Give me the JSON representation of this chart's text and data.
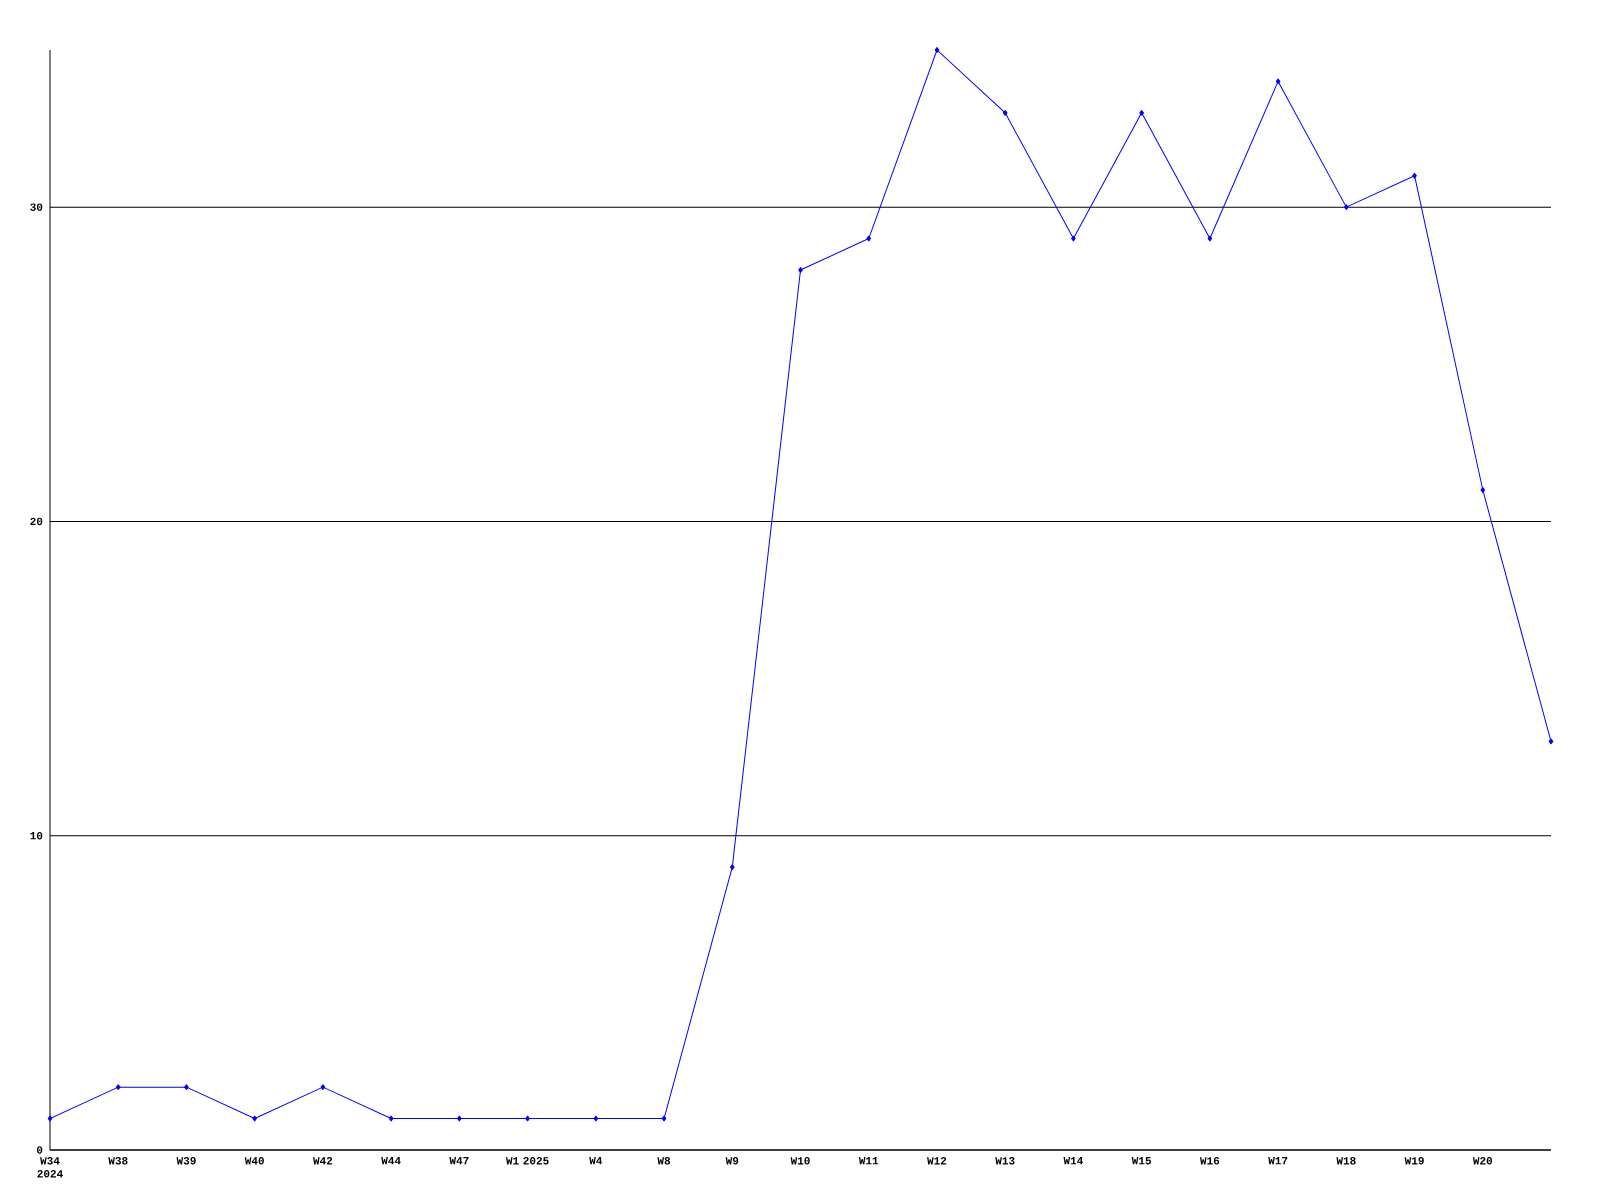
{
  "chart_data": {
    "type": "line",
    "categories": [
      "W34 2024",
      "W38",
      "W39",
      "W40",
      "W42",
      "W44",
      "W47",
      "W1 2025",
      "W4",
      "W8",
      "W9",
      "W10",
      "W11",
      "W12",
      "W13",
      "W14",
      "W15",
      "W16",
      "W17",
      "W18",
      "W19",
      "W20",
      null
    ],
    "values": [
      1,
      2,
      2,
      1,
      2,
      1,
      1,
      1,
      1,
      1,
      9,
      28,
      29,
      35,
      33,
      29,
      33,
      29,
      34,
      30,
      31,
      21,
      13
    ],
    "color": "#0000ff",
    "ylim": [
      0,
      35
    ],
    "yticks": [
      0,
      10,
      20,
      30
    ],
    "grid": "y",
    "marker": "diamond",
    "line_style": "solid"
  }
}
